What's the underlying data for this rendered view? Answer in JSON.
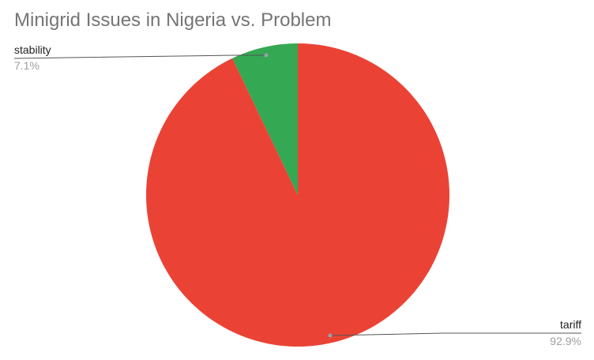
{
  "chart_data": {
    "type": "pie",
    "title": "Minigrid Issues in Nigeria vs. Problem",
    "slices": [
      {
        "name": "tariff",
        "value": 92.9,
        "label": "92.9%",
        "color": "#EA4335"
      },
      {
        "name": "stability",
        "value": 7.1,
        "label": "7.1%",
        "color": "#34A853"
      }
    ],
    "start_angle_deg": 0,
    "direction": "clockwise"
  }
}
